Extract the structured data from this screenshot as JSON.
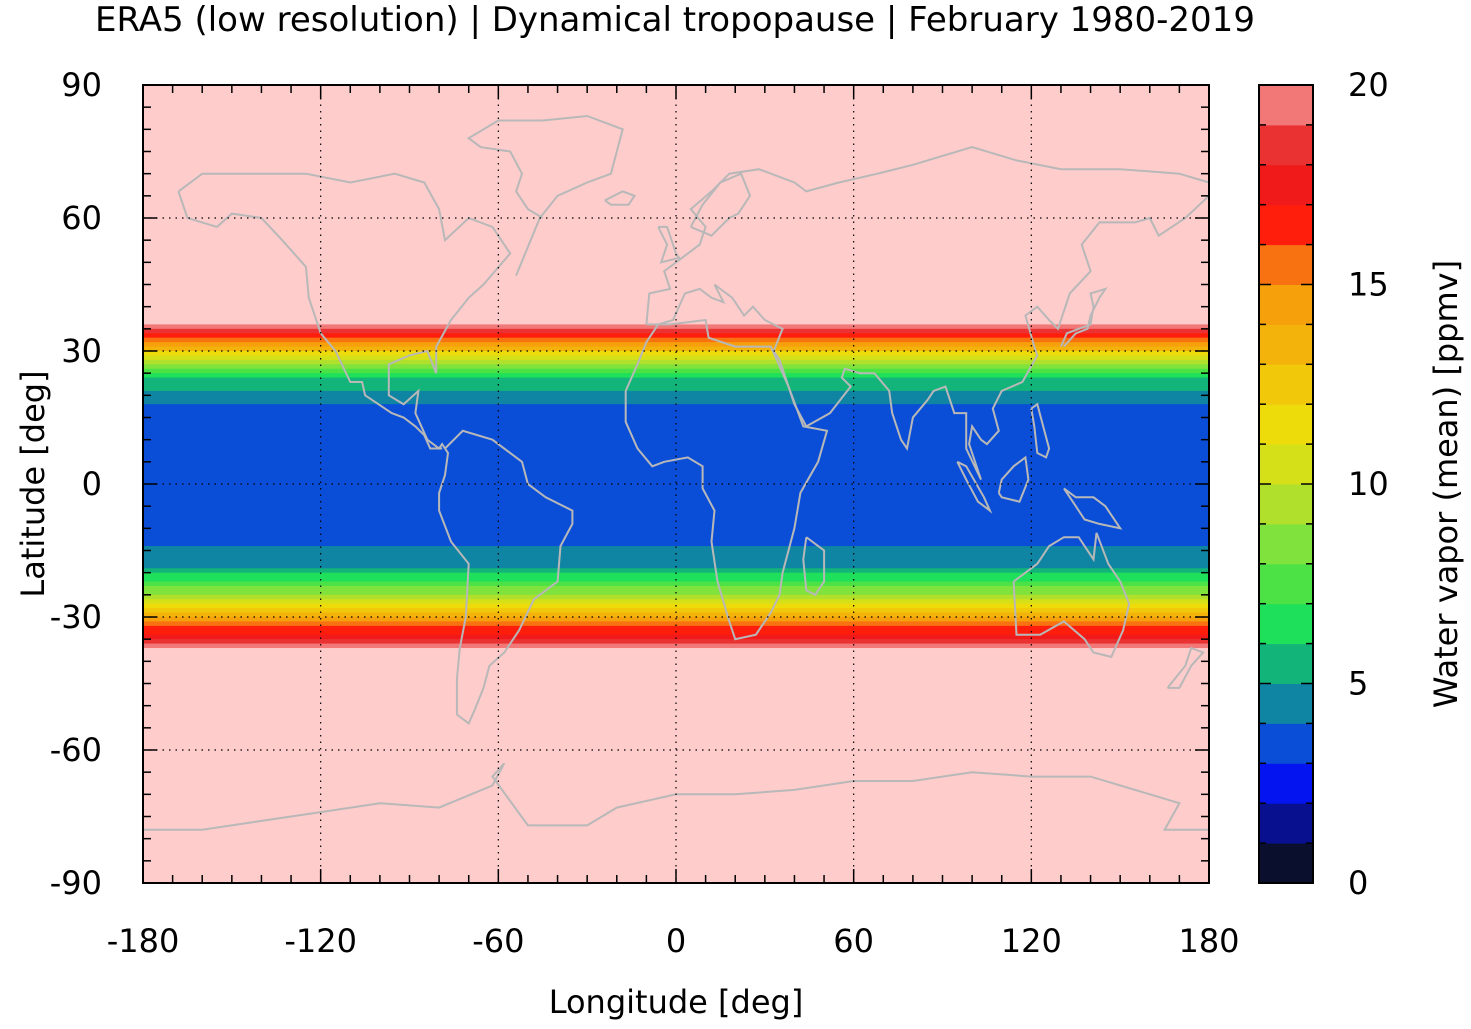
{
  "chart_data": {
    "type": "heatmap",
    "title": "ERA5 (low resolution) | Dynamical tropopause | February 1980-2019",
    "xlabel": "Longitude [deg]",
    "ylabel": "Latitude [deg]",
    "xlim": [
      -180,
      180
    ],
    "ylim": [
      -90,
      90
    ],
    "x_ticks": [
      -180,
      -120,
      -60,
      0,
      60,
      120,
      180
    ],
    "x_tick_labels": [
      "-180",
      "-120",
      "-60",
      "0",
      "60",
      "120",
      "180"
    ],
    "y_ticks": [
      -90,
      -60,
      -30,
      0,
      30,
      60,
      90
    ],
    "y_tick_labels": [
      "-90",
      "-60",
      "-30",
      "0",
      "30",
      "60",
      "90"
    ],
    "grid": "dotted",
    "colorbar": {
      "label": "Water vapor (mean) [ppmv]",
      "range": [
        0,
        20
      ],
      "ticks": [
        0,
        5,
        10,
        15,
        20
      ],
      "tick_labels": [
        "0",
        "5",
        "10",
        "15",
        "20"
      ],
      "colors": [
        "#0a0f2e",
        "#081090",
        "#0414f0",
        "#0a4ed8",
        "#0f85a3",
        "#12b47a",
        "#1ee05a",
        "#4ce246",
        "#80e23c",
        "#b0e02c",
        "#d6e018",
        "#eedc0a",
        "#f2c80a",
        "#f4b30a",
        "#f6a00c",
        "#f87212",
        "#ff1e0c",
        "#f01a1a",
        "#ea3232",
        "#f27878",
        "#ffcccc"
      ]
    },
    "field": {
      "description_units": "ppmv",
      "zonal_profile": [
        {
          "lat": 90,
          "value": 20
        },
        {
          "lat": 36,
          "value": 20
        },
        {
          "lat": 32,
          "value": 15
        },
        {
          "lat": 28,
          "value": 10
        },
        {
          "lat": 24,
          "value": 6
        },
        {
          "lat": 18,
          "value": 4
        },
        {
          "lat": 10,
          "value": 3.5
        },
        {
          "lat": 0,
          "value": 3
        },
        {
          "lat": -10,
          "value": 3.5
        },
        {
          "lat": -18,
          "value": 4.5
        },
        {
          "lat": -22,
          "value": 7
        },
        {
          "lat": -26,
          "value": 10
        },
        {
          "lat": -29,
          "value": 13
        },
        {
          "lat": -31,
          "value": 15.5
        },
        {
          "lat": -34,
          "value": 17
        },
        {
          "lat": -37,
          "value": 20
        },
        {
          "lat": -90,
          "value": 20
        }
      ]
    }
  }
}
